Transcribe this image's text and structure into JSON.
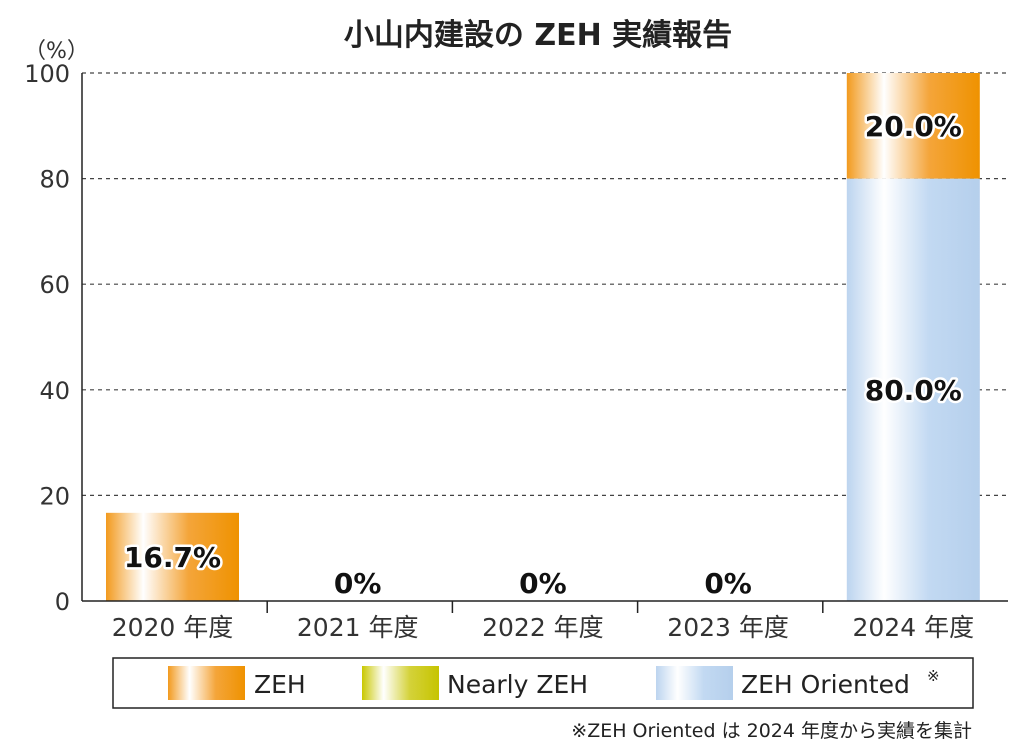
{
  "chart_data": {
    "type": "bar",
    "stacked": true,
    "title": "小山内建設の ZEH 実績報告",
    "ylabel": "（%）",
    "ylim": [
      0,
      100
    ],
    "yticks": [
      0,
      20,
      40,
      60,
      80,
      100
    ],
    "grid": true,
    "categories": [
      "2020 年度",
      "2021 年度",
      "2022 年度",
      "2023 年度",
      "2024 年度"
    ],
    "series": [
      {
        "name": "ZEH Oriented",
        "superscript": "※",
        "values": [
          0,
          0,
          0,
          0,
          80.0
        ],
        "color": "#b8d3f0"
      },
      {
        "name": "Nearly ZEH",
        "values": [
          0,
          0,
          0,
          0,
          0
        ],
        "color": "#c8c800"
      },
      {
        "name": "ZEH",
        "values": [
          16.7,
          0,
          0,
          0,
          20.0
        ],
        "color": "#f0960a"
      }
    ],
    "legend_order": [
      "ZEH",
      "Nearly ZEH",
      "ZEH Oriented"
    ],
    "legend_position": "bottom",
    "data_labels": [
      {
        "category": 0,
        "series": "ZEH",
        "text": "16.7%"
      },
      {
        "category": 1,
        "series": "total",
        "text": "0%"
      },
      {
        "category": 2,
        "series": "total",
        "text": "0%"
      },
      {
        "category": 3,
        "series": "total",
        "text": "0%"
      },
      {
        "category": 4,
        "series": "ZEH",
        "text": "20.0%"
      },
      {
        "category": 4,
        "series": "ZEH Oriented",
        "text": "80.0%"
      }
    ],
    "note": "※ZEH Oriented は 2024 年度から実績を集計"
  }
}
